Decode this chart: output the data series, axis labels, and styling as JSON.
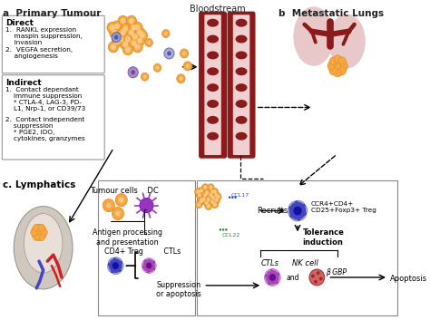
{
  "title": "",
  "bg_color": "#ffffff",
  "panel_a_title": "a  Primary Tumour",
  "panel_b_title": "b  Metastatic Lungs",
  "panel_c_title": "c. Lymphatics",
  "bloodstream_title": "Bloodstream",
  "direct_text": "Direct",
  "indirect_text": "Indirect",
  "tumour_color": "#f4a742",
  "tumour_outline": "#e8922a",
  "tumour_inner": "#f8c882",
  "vessel_color": "#8b1a1a",
  "vessel_light": "#d4a0a0",
  "lung_color": "#8b1a1a",
  "lung_bg": "#e8c8c8",
  "treg_color": "#3a3aaa",
  "treg_outline": "#8888dd",
  "nk_color": "#cc6666",
  "nk_outline": "#aa4444",
  "dc_color": "#9933bb",
  "ctl_color": "#aa44bb",
  "right_box_bgbp": "β GBP",
  "right_box_suppression": "Suppression\nor apoptosis",
  "right_box_apoptosis": "Apoptosis"
}
